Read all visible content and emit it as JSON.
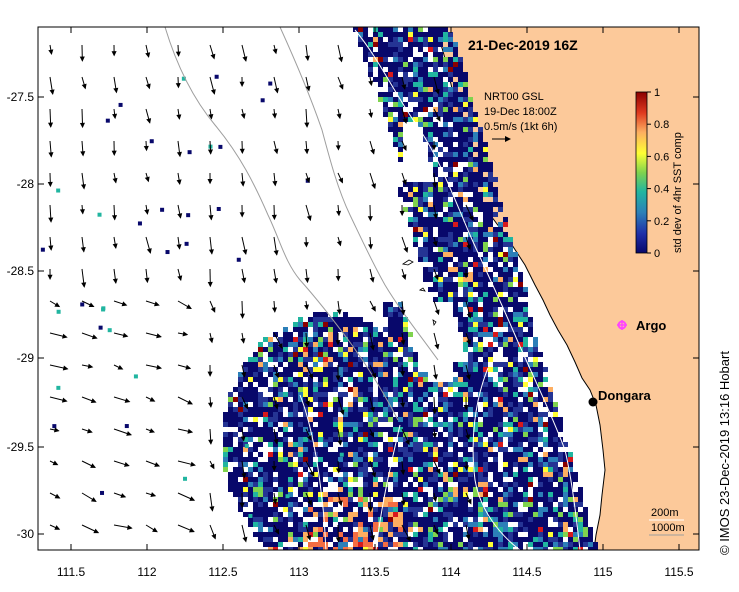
{
  "title": "21-Dec-2019 16Z",
  "copyright": "© IMOS 23-Dec-2019 13:16 Hobart",
  "current_legend": {
    "line1": "NRT00 GSL",
    "line2": "19-Dec 18:00Z",
    "line3": "0.5m/s (1kt 6h)"
  },
  "colorbar": {
    "label": "std dev of 4hr SST comp",
    "ticks": [
      "1",
      "0.8",
      "0.6",
      "0.4",
      "0.2",
      "0"
    ],
    "colors": [
      "#8b0000",
      "#d7191c",
      "#f46d43",
      "#fdae61",
      "#ffff33",
      "#7fd34e",
      "#21b5a0",
      "#2c7fb8",
      "#253494",
      "#08086b"
    ]
  },
  "places": {
    "argo": "Argo",
    "dongara": "Dongara"
  },
  "contours": {
    "c200": "200m",
    "c1000": "1000m"
  },
  "axes": {
    "x_ticks": [
      "111.5",
      "112",
      "112.5",
      "113",
      "113.5",
      "114",
      "114.5",
      "115",
      "115.5"
    ],
    "y_ticks": [
      "-27.5",
      "-28",
      "-28.5",
      "-29",
      "-29.5",
      "-30"
    ]
  },
  "colors": {
    "land": "#fcc99a",
    "ocean": "#ffffff",
    "argo_marker": "#ff44ff",
    "place_marker": "#000000"
  }
}
